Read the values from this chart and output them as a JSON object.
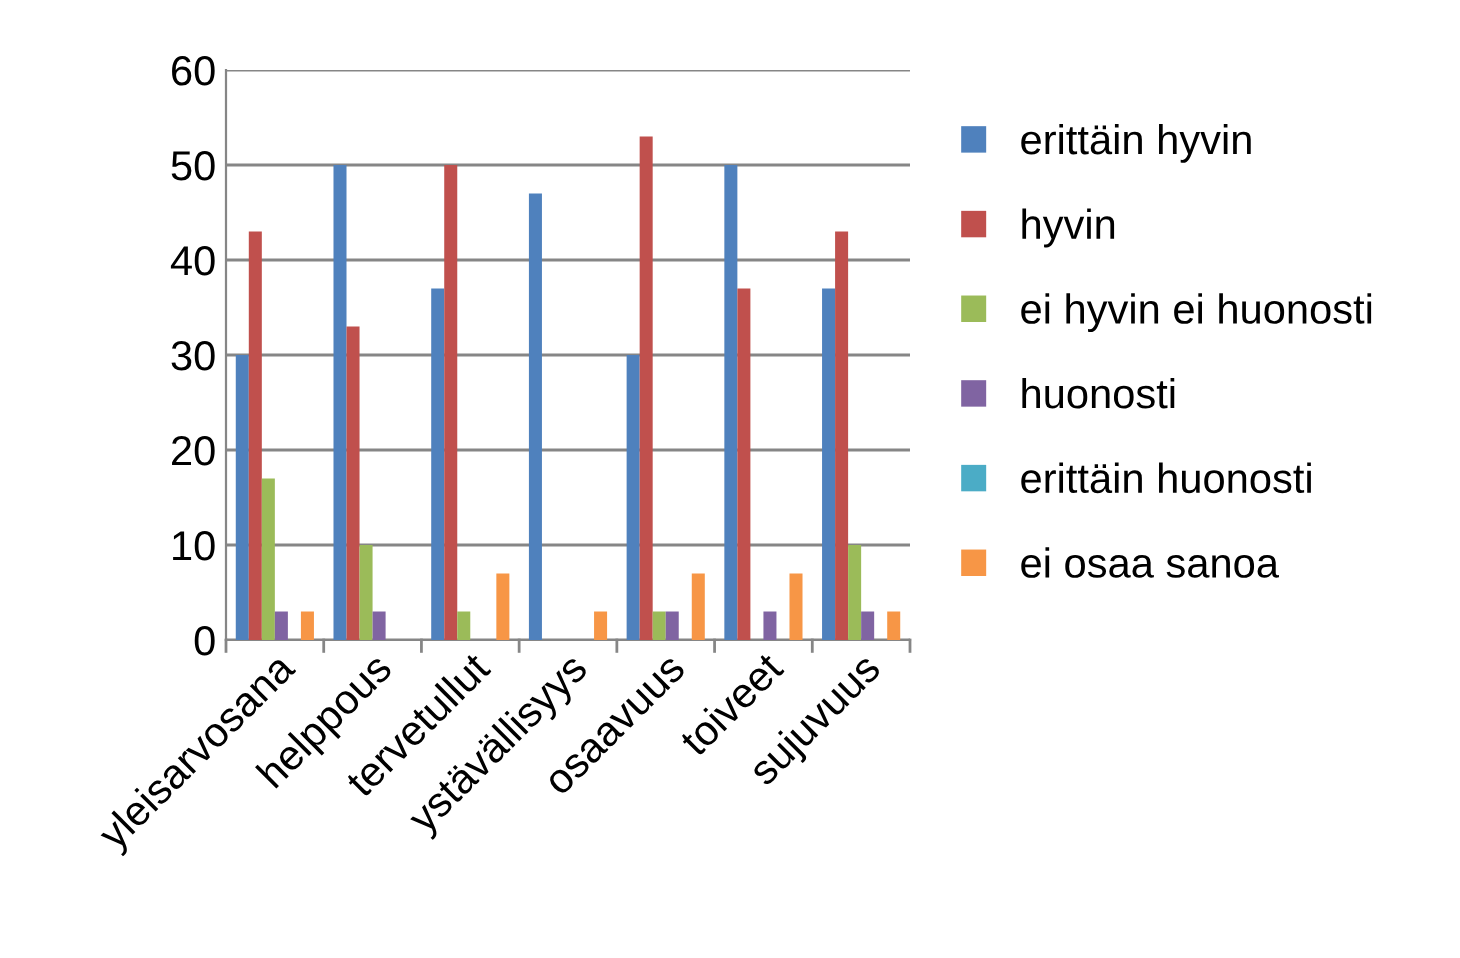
{
  "chart_data": {
    "type": "bar",
    "categories": [
      "yleisarvosana",
      "helppous",
      "tervetullut",
      "ystävällisyys",
      "osaavuus",
      "toiveet",
      "sujuvuus"
    ],
    "series": [
      {
        "name": "erittäin hyvin",
        "color": "#4f81bd",
        "values": [
          30,
          50,
          37,
          47,
          30,
          50,
          37
        ]
      },
      {
        "name": "hyvin",
        "color": "#c0504d",
        "values": [
          43,
          33,
          50,
          0,
          53,
          37,
          43
        ]
      },
      {
        "name": "ei hyvin ei huonosti",
        "color": "#9bbb59",
        "values": [
          17,
          10,
          3,
          0,
          3,
          0,
          10
        ]
      },
      {
        "name": "huonosti",
        "color": "#8064a2",
        "values": [
          3,
          3,
          0,
          0,
          3,
          3,
          3
        ]
      },
      {
        "name": "erittäin huonosti",
        "color": "#4bacc6",
        "values": [
          0,
          0,
          0,
          0,
          0,
          0,
          0
        ]
      },
      {
        "name": "ei osaa sanoa",
        "color": "#f79646",
        "values": [
          3,
          0,
          7,
          3,
          7,
          7,
          3
        ]
      }
    ],
    "ylim": [
      0,
      60
    ],
    "yticks": [
      0,
      10,
      20,
      30,
      40,
      50,
      60
    ],
    "grid": "y",
    "legend": "right"
  }
}
